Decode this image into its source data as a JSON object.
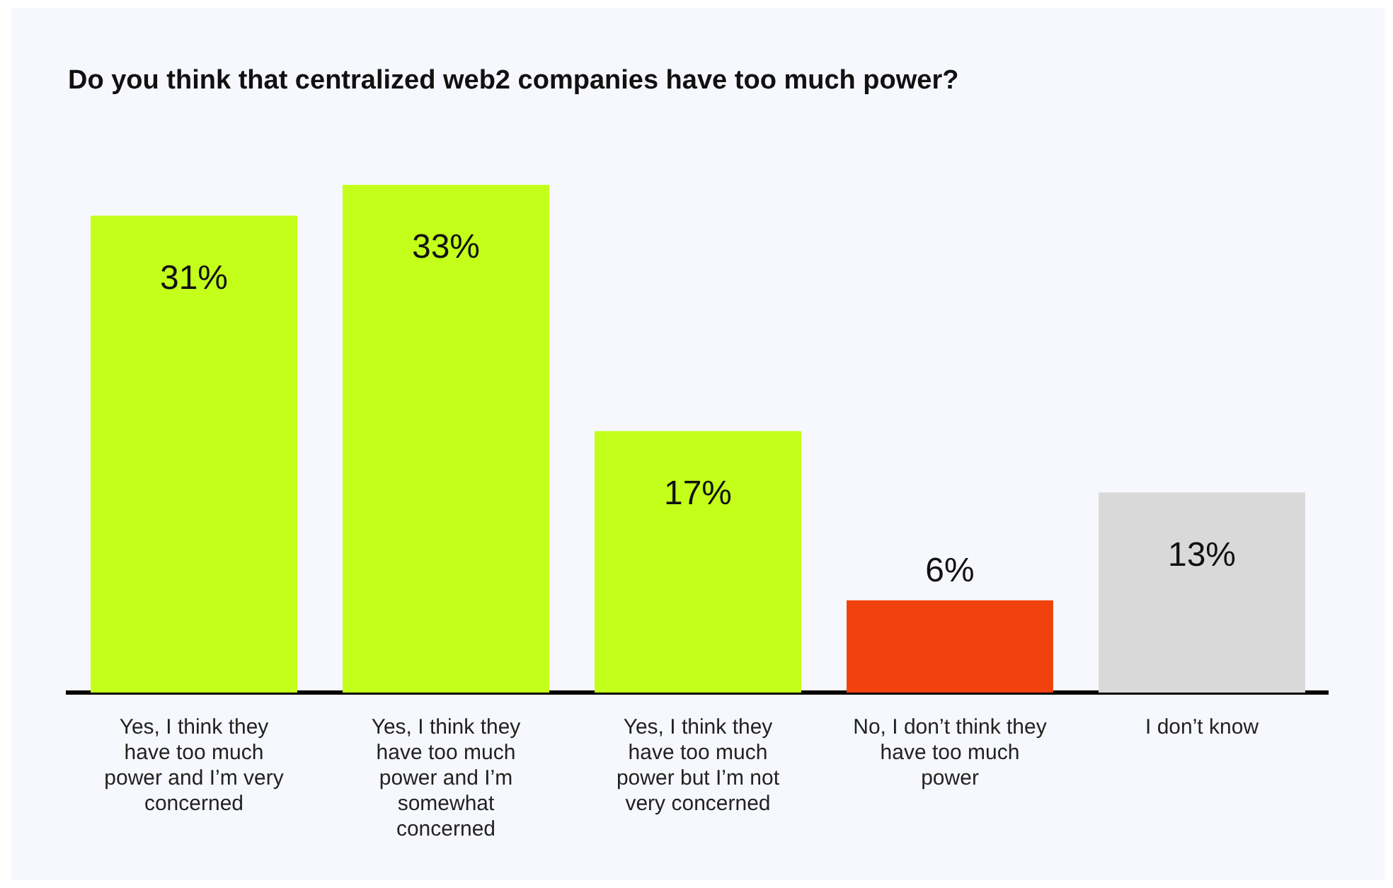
{
  "chart_data": {
    "type": "bar",
    "title": "Do you think that centralized web2 companies have too much power?",
    "categories": [
      "Yes, I think they have too much power and I’m very concerned",
      "Yes, I think they have too much power and I’m somewhat concerned",
      "Yes, I think they have too much power but I’m not very concerned",
      "No, I don’t think they have too much power",
      "I don’t know"
    ],
    "values": [
      31,
      33,
      17,
      6,
      13
    ],
    "colors": [
      "#c3ff1a",
      "#c3ff1a",
      "#c3ff1a",
      "#f1420e",
      "#d9d9d9"
    ],
    "value_labels": [
      "31%",
      "33%",
      "17%",
      "6%",
      "13%"
    ],
    "grid": false,
    "legend": false
  }
}
